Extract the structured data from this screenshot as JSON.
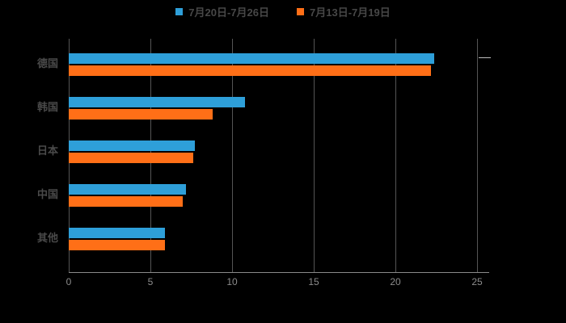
{
  "chart_data": {
    "type": "bar",
    "orientation": "horizontal",
    "title": "",
    "categories": [
      "德国",
      "韩国",
      "日本",
      "中国",
      "其他"
    ],
    "series": [
      {
        "name": "7月20日-7月26日",
        "color": "#2E9FD9",
        "values": [
          22.4,
          10.8,
          7.7,
          7.2,
          5.9
        ]
      },
      {
        "name": "7月13日-7月19日",
        "color": "#FF6F17",
        "values": [
          22.2,
          8.8,
          7.6,
          7.0,
          5.9
        ]
      }
    ],
    "xlim": [
      0,
      25
    ],
    "xticks": [
      0,
      5,
      10,
      15,
      20,
      25
    ],
    "grid": true,
    "legend_position": "top",
    "background_color": "#000000",
    "gridline_color": "#555555",
    "axis_color": "#8a8a8a",
    "tick_label_color": "#8c8c8c",
    "category_label_color": "#4a4a4a"
  }
}
